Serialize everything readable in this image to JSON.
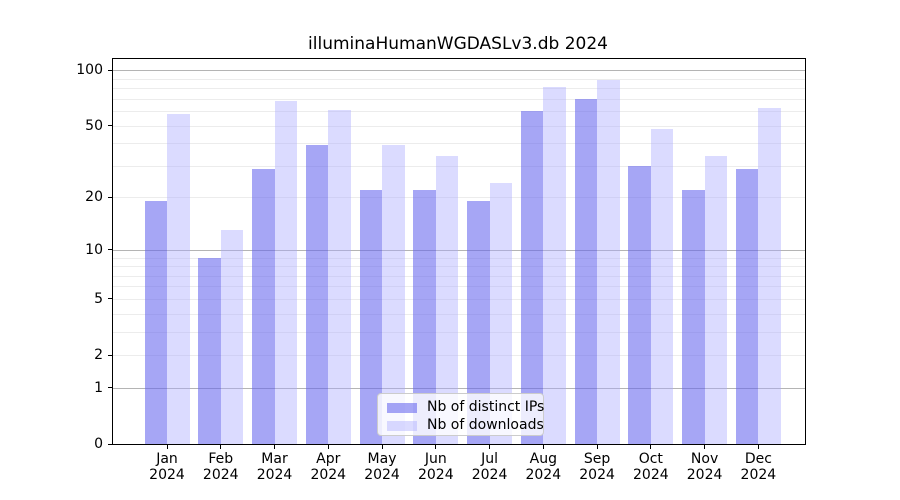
{
  "title": "illuminaHumanWGDASLv3.db 2024",
  "chart_data": {
    "type": "bar",
    "title": "illuminaHumanWGDASLv3.db 2024",
    "months": [
      "Jan",
      "Feb",
      "Mar",
      "Apr",
      "May",
      "Jun",
      "Jul",
      "Aug",
      "Sep",
      "Oct",
      "Nov",
      "Dec"
    ],
    "year": "2024",
    "categories": [
      "Jan 2024",
      "Feb 2024",
      "Mar 2024",
      "Apr 2024",
      "May 2024",
      "Jun 2024",
      "Jul 2024",
      "Aug 2024",
      "Sep 2024",
      "Oct 2024",
      "Nov 2024",
      "Dec 2024"
    ],
    "series": [
      {
        "name": "Nb of distinct IPs",
        "color": "rgba(102,102,238,0.58)",
        "values": [
          19,
          9,
          29,
          39,
          22,
          22,
          19,
          60,
          70,
          30,
          22,
          29
        ]
      },
      {
        "name": "Nb of downloads",
        "color": "rgba(170,170,255,0.42)",
        "values": [
          58,
          13,
          68,
          61,
          39,
          34,
          24,
          81,
          89,
          48,
          34,
          62
        ]
      }
    ],
    "xlabel": "",
    "ylabel": "",
    "yscale": "log1p",
    "ylim": [
      0,
      115
    ],
    "yticks": [
      100,
      50,
      20,
      10,
      5,
      2,
      1,
      0
    ],
    "major_gridlines": [
      1,
      10,
      100
    ],
    "minor_gridlines": [
      2,
      3,
      4,
      5,
      6,
      7,
      8,
      9,
      20,
      30,
      40,
      50,
      60,
      70,
      80,
      90
    ],
    "grid": true,
    "legend_position": "lower center"
  },
  "colors": {
    "background": "#ffffff",
    "axis": "#000000",
    "text": "#000000",
    "major_grid": "#b4b4b4",
    "minor_grid": "#ececec",
    "ip_bar": "rgba(102,102,238,0.58)",
    "dl_bar": "rgba(170,170,255,0.42)",
    "legend_border": "#cccccc",
    "legend_bg": "rgba(255,255,255,0.8)"
  }
}
